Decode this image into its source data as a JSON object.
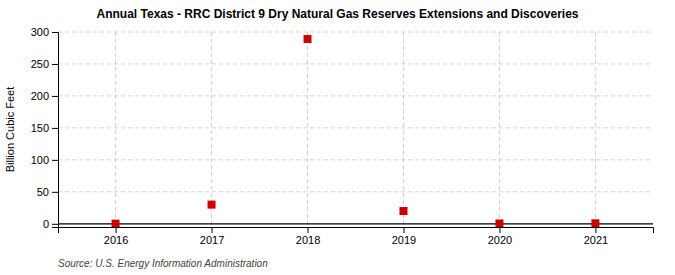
{
  "chart_data": {
    "type": "scatter",
    "title": "Annual Texas - RRC District 9 Dry Natural Gas Reserves Extensions and Discoveries",
    "ylabel": "Billion Cubic Feet",
    "source": "Source: U.S. Energy Information Administration",
    "x": [
      2016,
      2017,
      2018,
      2019,
      2020,
      2021
    ],
    "values": [
      0.3,
      30.0,
      289.0,
      20.0,
      0.5,
      0.8
    ],
    "xlim": [
      2015.4,
      2021.6
    ],
    "ylim": [
      -5,
      300
    ],
    "xticks": [
      2016,
      2017,
      2018,
      2019,
      2020,
      2021
    ],
    "yticks": [
      0,
      50,
      100,
      150,
      200,
      250,
      300
    ],
    "color": "#cc0000",
    "marker": "square",
    "grid": true
  }
}
